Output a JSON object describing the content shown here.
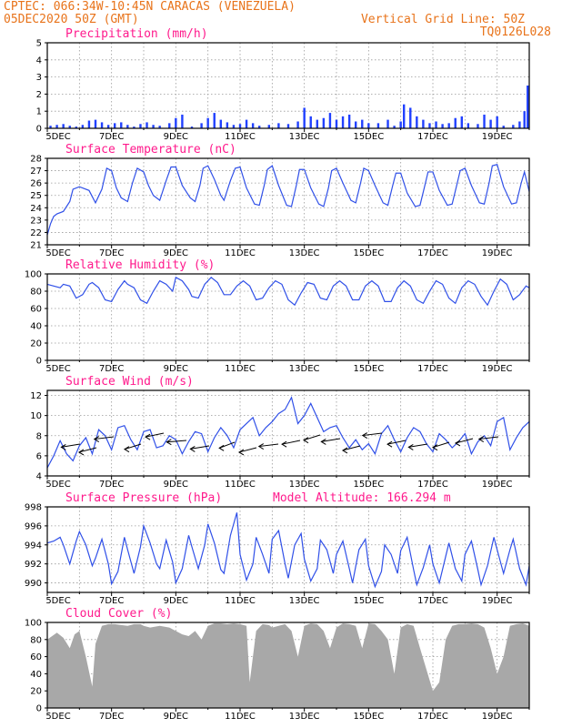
{
  "header": {
    "station": "CPTEC:  066:34W-10:45N  CARACAS (VENEZUELA)",
    "run": "05DEC2020 50Z (GMT)",
    "grid_note": "Vertical Grid Line: 50Z",
    "code": "TQ0126L028"
  },
  "x_tick_labels": [
    "5DEC",
    "7DEC",
    "9DEC",
    "11DEC",
    "13DEC",
    "15DEC",
    "17DEC",
    "19DEC"
  ],
  "altitude_label": "Model Altitude: 166.294 m",
  "colors": {
    "header": "#e8731a",
    "panel_title": "#ff1a8c",
    "series": "#3050e8",
    "bars": "#2040ff",
    "cloud": "#a8a8a8"
  },
  "chart_data": [
    {
      "type": "bar",
      "title": "Precipitation (mm/h)",
      "ylim": [
        0,
        5
      ],
      "yticks": [
        0,
        1,
        2,
        3,
        4,
        5
      ],
      "xlim": [
        5,
        20
      ],
      "values": [
        [
          5.1,
          0.15
        ],
        [
          5.3,
          0.2
        ],
        [
          5.5,
          0.25
        ],
        [
          5.7,
          0.15
        ],
        [
          5.9,
          0.1
        ],
        [
          6.1,
          0.2
        ],
        [
          6.3,
          0.45
        ],
        [
          6.5,
          0.5
        ],
        [
          6.7,
          0.35
        ],
        [
          6.9,
          0.2
        ],
        [
          7.1,
          0.3
        ],
        [
          7.3,
          0.35
        ],
        [
          7.5,
          0.2
        ],
        [
          7.7,
          0.1
        ],
        [
          7.9,
          0.25
        ],
        [
          8.1,
          0.35
        ],
        [
          8.3,
          0.2
        ],
        [
          8.5,
          0.15
        ],
        [
          8.8,
          0.3
        ],
        [
          9.0,
          0.6
        ],
        [
          9.2,
          0.8
        ],
        [
          9.5,
          0.1
        ],
        [
          9.8,
          0.3
        ],
        [
          10.0,
          0.6
        ],
        [
          10.2,
          0.9
        ],
        [
          10.4,
          0.5
        ],
        [
          10.6,
          0.35
        ],
        [
          10.8,
          0.2
        ],
        [
          11.0,
          0.25
        ],
        [
          11.2,
          0.5
        ],
        [
          11.4,
          0.3
        ],
        [
          11.6,
          0.15
        ],
        [
          11.9,
          0.2
        ],
        [
          12.2,
          0.3
        ],
        [
          12.5,
          0.25
        ],
        [
          12.8,
          0.4
        ],
        [
          13.0,
          1.2
        ],
        [
          13.2,
          0.7
        ],
        [
          13.4,
          0.5
        ],
        [
          13.6,
          0.6
        ],
        [
          13.8,
          0.9
        ],
        [
          14.0,
          0.5
        ],
        [
          14.2,
          0.7
        ],
        [
          14.4,
          0.8
        ],
        [
          14.6,
          0.4
        ],
        [
          14.8,
          0.5
        ],
        [
          15.0,
          0.3
        ],
        [
          15.3,
          0.3
        ],
        [
          15.6,
          0.5
        ],
        [
          15.8,
          0.15
        ],
        [
          16.0,
          0.4
        ],
        [
          16.1,
          1.4
        ],
        [
          16.3,
          1.2
        ],
        [
          16.5,
          0.7
        ],
        [
          16.7,
          0.5
        ],
        [
          16.9,
          0.3
        ],
        [
          17.1,
          0.4
        ],
        [
          17.3,
          0.25
        ],
        [
          17.5,
          0.3
        ],
        [
          17.7,
          0.6
        ],
        [
          17.9,
          0.7
        ],
        [
          18.1,
          0.3
        ],
        [
          18.4,
          0.25
        ],
        [
          18.6,
          0.8
        ],
        [
          18.8,
          0.5
        ],
        [
          19.0,
          0.7
        ],
        [
          19.2,
          0.15
        ],
        [
          19.5,
          0.2
        ],
        [
          19.7,
          0.4
        ],
        [
          19.85,
          1.0
        ],
        [
          19.95,
          2.5
        ]
      ]
    },
    {
      "type": "line",
      "title": "Surface Temperature (nC)",
      "ylim": [
        21,
        28
      ],
      "yticks": [
        21,
        22,
        23,
        24,
        25,
        26,
        27,
        28
      ],
      "xlim": [
        5,
        20
      ],
      "x": [
        5.0,
        5.1,
        5.2,
        5.3,
        5.5,
        5.7,
        5.8,
        6.0,
        6.3,
        6.5,
        6.7,
        6.85,
        7.0,
        7.15,
        7.3,
        7.5,
        7.65,
        7.8,
        8.0,
        8.15,
        8.3,
        8.5,
        8.7,
        8.85,
        9.0,
        9.2,
        9.45,
        9.6,
        9.75,
        9.85,
        10.0,
        10.2,
        10.4,
        10.5,
        10.7,
        10.85,
        11.0,
        11.2,
        11.45,
        11.6,
        11.75,
        11.85,
        12.0,
        12.2,
        12.45,
        12.6,
        12.75,
        12.85,
        13.0,
        13.2,
        13.45,
        13.6,
        13.75,
        13.85,
        14.0,
        14.2,
        14.45,
        14.6,
        14.75,
        14.85,
        15.0,
        15.2,
        15.45,
        15.6,
        15.75,
        15.85,
        16.0,
        16.2,
        16.45,
        16.6,
        16.75,
        16.85,
        17.0,
        17.2,
        17.45,
        17.6,
        17.75,
        17.85,
        18.0,
        18.2,
        18.45,
        18.6,
        18.75,
        18.85,
        19.0,
        19.2,
        19.45,
        19.6,
        19.75,
        19.85,
        20.0
      ],
      "y": [
        21.8,
        22.7,
        23.3,
        23.5,
        23.7,
        24.5,
        25.5,
        25.7,
        25.4,
        24.4,
        25.5,
        27.2,
        27.0,
        25.6,
        24.8,
        24.5,
        26.0,
        27.2,
        26.9,
        25.8,
        25.0,
        24.6,
        26.2,
        27.3,
        27.3,
        25.8,
        24.8,
        24.5,
        25.8,
        27.2,
        27.4,
        26.3,
        25.0,
        24.6,
        26.2,
        27.2,
        27.3,
        25.6,
        24.3,
        24.2,
        25.8,
        27.1,
        27.4,
        25.8,
        24.2,
        24.1,
        25.8,
        27.1,
        27.1,
        25.6,
        24.3,
        24.1,
        25.6,
        27.0,
        27.2,
        26.0,
        24.6,
        24.4,
        26.0,
        27.2,
        27.0,
        25.8,
        24.4,
        24.2,
        25.8,
        26.8,
        26.8,
        25.2,
        24.1,
        24.2,
        25.8,
        26.9,
        26.9,
        25.4,
        24.2,
        24.3,
        25.9,
        27.0,
        27.2,
        25.8,
        24.4,
        24.3,
        26.0,
        27.4,
        27.5,
        25.7,
        24.3,
        24.4,
        26.0,
        26.9,
        25.3
      ]
    },
    {
      "type": "line",
      "title": "Relative Humidity (%)",
      "ylim": [
        0,
        100
      ],
      "yticks": [
        0,
        20,
        40,
        60,
        80,
        100
      ],
      "xlim": [
        5,
        20
      ],
      "x": [
        5.0,
        5.2,
        5.4,
        5.5,
        5.7,
        5.9,
        6.1,
        6.3,
        6.4,
        6.6,
        6.8,
        7.0,
        7.2,
        7.4,
        7.5,
        7.7,
        7.9,
        8.1,
        8.3,
        8.5,
        8.7,
        8.9,
        9.0,
        9.2,
        9.4,
        9.5,
        9.7,
        9.9,
        10.1,
        10.3,
        10.5,
        10.7,
        10.9,
        11.1,
        11.3,
        11.5,
        11.7,
        11.9,
        12.1,
        12.3,
        12.5,
        12.7,
        12.9,
        13.1,
        13.3,
        13.5,
        13.7,
        13.9,
        14.1,
        14.3,
        14.5,
        14.7,
        14.9,
        15.1,
        15.3,
        15.5,
        15.7,
        15.9,
        16.1,
        16.3,
        16.5,
        16.7,
        16.9,
        17.1,
        17.3,
        17.5,
        17.7,
        17.9,
        18.1,
        18.3,
        18.5,
        18.7,
        18.9,
        19.1,
        19.3,
        19.5,
        19.7,
        19.9,
        20.0
      ],
      "y": [
        88,
        86,
        84,
        88,
        86,
        72,
        76,
        88,
        90,
        84,
        70,
        68,
        82,
        92,
        88,
        84,
        70,
        66,
        80,
        92,
        88,
        80,
        96,
        92,
        82,
        74,
        72,
        88,
        96,
        90,
        76,
        76,
        86,
        92,
        86,
        70,
        72,
        84,
        92,
        88,
        70,
        64,
        78,
        90,
        88,
        72,
        70,
        86,
        92,
        86,
        70,
        70,
        86,
        92,
        86,
        68,
        68,
        84,
        92,
        86,
        70,
        66,
        80,
        92,
        88,
        72,
        66,
        84,
        92,
        88,
        74,
        64,
        80,
        94,
        88,
        70,
        76,
        86,
        84
      ]
    },
    {
      "type": "line",
      "title": "Surface Wind (m/s)",
      "ylim": [
        4,
        12.5
      ],
      "yticks": [
        4,
        6,
        8,
        10,
        12
      ],
      "xlim": [
        5,
        20
      ],
      "x": [
        5.0,
        5.2,
        5.4,
        5.6,
        5.8,
        6.0,
        6.2,
        6.4,
        6.6,
        6.8,
        7.0,
        7.2,
        7.4,
        7.6,
        7.8,
        8.0,
        8.2,
        8.4,
        8.6,
        8.8,
        9.0,
        9.2,
        9.4,
        9.6,
        9.8,
        10.0,
        10.2,
        10.4,
        10.6,
        10.8,
        11.0,
        11.2,
        11.4,
        11.6,
        11.8,
        12.0,
        12.2,
        12.4,
        12.6,
        12.8,
        13.0,
        13.2,
        13.4,
        13.6,
        13.8,
        14.0,
        14.2,
        14.4,
        14.6,
        14.8,
        15.0,
        15.2,
        15.4,
        15.6,
        15.8,
        16.0,
        16.2,
        16.4,
        16.6,
        16.8,
        17.0,
        17.2,
        17.4,
        17.6,
        17.8,
        18.0,
        18.2,
        18.4,
        18.6,
        18.8,
        19.0,
        19.2,
        19.4,
        19.6,
        19.8,
        20.0
      ],
      "y": [
        4.8,
        6.0,
        7.5,
        6.2,
        5.5,
        7.0,
        7.8,
        6.2,
        8.6,
        8.0,
        6.6,
        8.8,
        9.0,
        7.6,
        6.6,
        8.4,
        8.6,
        6.8,
        7.0,
        8.0,
        7.6,
        6.2,
        7.4,
        8.4,
        8.2,
        6.4,
        7.8,
        8.8,
        8.0,
        6.8,
        8.6,
        9.2,
        9.8,
        8.0,
        8.8,
        9.4,
        10.2,
        10.6,
        11.8,
        9.2,
        10.0,
        11.2,
        9.8,
        8.4,
        8.8,
        9.0,
        7.8,
        6.8,
        7.6,
        6.6,
        7.2,
        6.2,
        8.2,
        9.0,
        7.6,
        6.4,
        7.8,
        8.8,
        8.4,
        7.2,
        6.4,
        8.2,
        7.6,
        6.8,
        7.4,
        8.2,
        6.2,
        7.4,
        8.0,
        7.0,
        9.4,
        9.8,
        6.6,
        7.8,
        8.8,
        9.4
      ]
    },
    {
      "type": "line",
      "title": "Surface Pressure (hPa)",
      "ylim": [
        989,
        998
      ],
      "yticks": [
        990,
        992,
        994,
        996,
        998
      ],
      "xlim": [
        5,
        20
      ],
      "x": [
        5.0,
        5.2,
        5.4,
        5.5,
        5.7,
        5.9,
        6.0,
        6.2,
        6.4,
        6.5,
        6.7,
        6.9,
        7.0,
        7.2,
        7.4,
        7.5,
        7.7,
        7.9,
        8.0,
        8.2,
        8.4,
        8.5,
        8.7,
        8.9,
        9.0,
        9.2,
        9.4,
        9.5,
        9.7,
        9.9,
        10.0,
        10.2,
        10.4,
        10.5,
        10.7,
        10.9,
        11.0,
        11.2,
        11.4,
        11.5,
        11.7,
        11.9,
        12.0,
        12.2,
        12.4,
        12.5,
        12.7,
        12.9,
        13.0,
        13.2,
        13.4,
        13.5,
        13.7,
        13.9,
        14.0,
        14.2,
        14.4,
        14.5,
        14.7,
        14.9,
        15.0,
        15.2,
        15.4,
        15.5,
        15.7,
        15.9,
        16.0,
        16.2,
        16.4,
        16.5,
        16.7,
        16.9,
        17.0,
        17.2,
        17.4,
        17.5,
        17.7,
        17.9,
        18.0,
        18.2,
        18.4,
        18.5,
        18.7,
        18.9,
        19.0,
        19.2,
        19.4,
        19.5,
        19.7,
        19.9,
        20.0
      ],
      "y": [
        994.2,
        994.4,
        994.8,
        994.0,
        992.0,
        994.4,
        995.4,
        994.0,
        991.8,
        992.6,
        994.6,
        992.0,
        989.9,
        991.2,
        994.8,
        993.5,
        991.0,
        993.8,
        996.0,
        994.2,
        992.0,
        991.5,
        994.5,
        992.2,
        990.0,
        991.5,
        995.0,
        993.8,
        991.5,
        994.0,
        996.2,
        994.2,
        991.4,
        991.0,
        995.0,
        997.4,
        993.0,
        990.3,
        992.0,
        994.8,
        993.0,
        991.0,
        994.6,
        995.5,
        992.0,
        990.5,
        994.0,
        995.2,
        992.5,
        990.2,
        991.5,
        994.5,
        993.5,
        991.0,
        993.0,
        994.4,
        991.5,
        990.0,
        993.5,
        994.6,
        991.8,
        989.6,
        991.2,
        994.0,
        993.0,
        991.0,
        993.4,
        994.8,
        991.4,
        989.8,
        991.6,
        994.0,
        992.0,
        990.0,
        992.8,
        994.2,
        991.5,
        990.2,
        993.0,
        994.4,
        991.4,
        989.8,
        991.8,
        994.8,
        993.5,
        991.0,
        993.5,
        994.6,
        991.5,
        989.8,
        991.8
      ]
    },
    {
      "type": "area",
      "title": "Cloud Cover (%)",
      "ylim": [
        0,
        100
      ],
      "yticks": [
        0,
        20,
        40,
        60,
        80,
        100
      ],
      "xlim": [
        5,
        20
      ],
      "x": [
        5.0,
        5.15,
        5.3,
        5.5,
        5.7,
        5.85,
        6.0,
        6.2,
        6.4,
        6.5,
        6.7,
        6.9,
        7.1,
        7.3,
        7.5,
        7.7,
        7.9,
        8.0,
        8.2,
        8.5,
        8.8,
        9.0,
        9.2,
        9.4,
        9.6,
        9.8,
        10.0,
        10.2,
        10.4,
        10.6,
        10.8,
        11.0,
        11.2,
        11.3,
        11.5,
        11.7,
        11.9,
        12.0,
        12.2,
        12.4,
        12.6,
        12.8,
        13.0,
        13.2,
        13.4,
        13.6,
        13.8,
        14.0,
        14.2,
        14.4,
        14.6,
        14.8,
        15.0,
        15.2,
        15.4,
        15.6,
        15.8,
        16.0,
        16.2,
        16.4,
        16.6,
        16.8,
        17.0,
        17.2,
        17.4,
        17.6,
        17.8,
        18.0,
        18.2,
        18.4,
        18.6,
        18.8,
        19.0,
        19.2,
        19.4,
        19.6,
        19.8,
        20.0
      ],
      "y": [
        80,
        84,
        88,
        82,
        70,
        86,
        90,
        60,
        25,
        75,
        96,
        98,
        98,
        97,
        96,
        98,
        98,
        96,
        94,
        96,
        94,
        90,
        86,
        84,
        90,
        80,
        96,
        99,
        99,
        98,
        99,
        98,
        96,
        30,
        90,
        98,
        97,
        94,
        96,
        98,
        90,
        60,
        96,
        99,
        98,
        90,
        70,
        94,
        99,
        98,
        96,
        70,
        99,
        98,
        90,
        80,
        40,
        94,
        98,
        96,
        70,
        45,
        20,
        30,
        80,
        96,
        98,
        98,
        99,
        98,
        94,
        70,
        40,
        60,
        96,
        98,
        99,
        96
      ]
    }
  ]
}
